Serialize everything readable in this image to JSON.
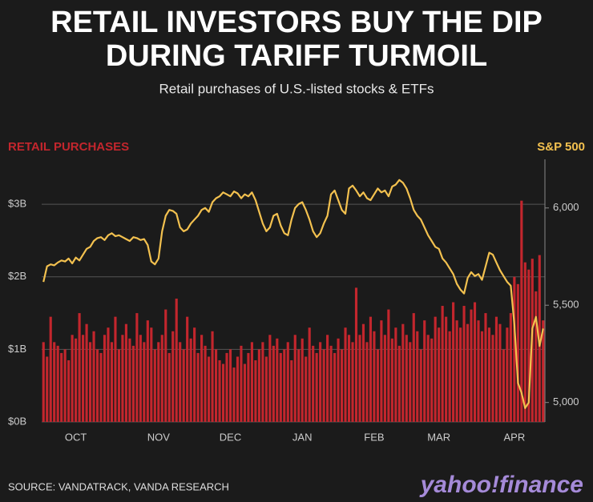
{
  "chart_data": {
    "type": "bar_line",
    "title": [
      "RETAIL INVESTORS BUY THE DIP",
      "DURING TARIFF TURMOIL"
    ],
    "subtitle": "Retail purchases of U.S.-listed stocks & ETFs",
    "y_label": "RETAIL PURCHASES",
    "y2_label": "S&P 500",
    "source": "SOURCE: VANDATRACK, VANDA RESEARCH",
    "logo": "yahoo!finance",
    "categories": [
      null,
      null,
      null,
      null,
      null,
      null,
      null,
      null,
      null,
      "OCT",
      null,
      null,
      null,
      null,
      null,
      null,
      null,
      null,
      null,
      null,
      null,
      null,
      null,
      null,
      null,
      null,
      null,
      null,
      null,
      null,
      null,
      null,
      "NOV",
      null,
      null,
      null,
      null,
      null,
      null,
      null,
      null,
      null,
      null,
      null,
      null,
      null,
      null,
      null,
      null,
      null,
      null,
      null,
      "DEC",
      null,
      null,
      null,
      null,
      null,
      null,
      null,
      null,
      null,
      null,
      null,
      null,
      null,
      null,
      null,
      null,
      null,
      null,
      null,
      "JAN",
      null,
      null,
      null,
      null,
      null,
      null,
      null,
      null,
      null,
      null,
      null,
      null,
      null,
      null,
      null,
      null,
      null,
      null,
      null,
      "FEB",
      null,
      null,
      null,
      null,
      null,
      null,
      null,
      null,
      null,
      null,
      null,
      null,
      null,
      null,
      null,
      null,
      null,
      "MAR",
      null,
      null,
      null,
      null,
      null,
      null,
      null,
      null,
      null,
      null,
      null,
      null,
      null,
      null,
      null,
      null,
      null,
      null,
      null,
      null,
      "APR",
      null,
      null,
      null,
      null,
      null,
      null,
      null,
      null
    ],
    "series": [
      {
        "name": "RETAIL PURCHASES",
        "color": "#c3262d",
        "axis": "y",
        "values": [
          1.1,
          0.9,
          1.45,
          1.1,
          1.05,
          0.95,
          1.0,
          0.85,
          1.2,
          1.15,
          1.5,
          1.2,
          1.35,
          1.1,
          1.25,
          1.0,
          0.95,
          1.2,
          1.3,
          1.1,
          1.45,
          1.0,
          1.2,
          1.35,
          1.15,
          1.05,
          1.5,
          1.2,
          1.1,
          1.4,
          1.3,
          1.0,
          1.1,
          1.2,
          1.55,
          0.95,
          1.25,
          1.7,
          1.1,
          1.0,
          1.45,
          1.15,
          1.3,
          0.95,
          1.2,
          1.05,
          0.9,
          1.25,
          1.0,
          0.85,
          0.8,
          0.95,
          1.0,
          0.75,
          0.9,
          1.05,
          0.8,
          0.95,
          1.1,
          0.85,
          1.0,
          1.1,
          0.9,
          1.2,
          1.05,
          1.15,
          0.95,
          1.0,
          1.1,
          0.85,
          1.2,
          1.0,
          1.15,
          0.9,
          1.3,
          1.05,
          0.95,
          1.1,
          1.0,
          1.2,
          1.05,
          0.95,
          1.15,
          1.0,
          1.3,
          1.2,
          1.1,
          1.85,
          1.2,
          1.35,
          1.1,
          1.45,
          1.25,
          1.0,
          1.4,
          1.2,
          1.55,
          1.15,
          1.3,
          1.05,
          1.35,
          1.2,
          1.1,
          1.5,
          1.25,
          1.0,
          1.4,
          1.2,
          1.15,
          1.45,
          1.3,
          1.6,
          1.45,
          1.25,
          1.65,
          1.4,
          1.3,
          1.6,
          1.35,
          1.55,
          1.65,
          1.4,
          1.25,
          1.5,
          1.3,
          1.2,
          1.45,
          1.35,
          1.0,
          1.3,
          1.5,
          2.0,
          1.9,
          3.05,
          2.2,
          2.1,
          2.25,
          1.8,
          2.3,
          1.4
        ]
      },
      {
        "name": "S&P 500",
        "color": "#f3c14f",
        "axis": "y2",
        "values": [
          5620,
          5700,
          5710,
          5705,
          5720,
          5730,
          5725,
          5740,
          5715,
          5745,
          5730,
          5760,
          5790,
          5800,
          5830,
          5845,
          5850,
          5835,
          5860,
          5870,
          5855,
          5860,
          5850,
          5840,
          5830,
          5850,
          5845,
          5835,
          5840,
          5810,
          5725,
          5710,
          5740,
          5880,
          5960,
          5990,
          5985,
          5970,
          5900,
          5880,
          5890,
          5920,
          5940,
          5960,
          5990,
          6000,
          5980,
          6030,
          6050,
          6060,
          6080,
          6070,
          6060,
          6085,
          6075,
          6050,
          6070,
          6060,
          6080,
          6040,
          5980,
          5920,
          5880,
          5900,
          5960,
          5970,
          5910,
          5870,
          5860,
          5940,
          6000,
          6020,
          6030,
          5990,
          5940,
          5880,
          5850,
          5870,
          5920,
          5960,
          6070,
          6090,
          6040,
          5990,
          5970,
          6100,
          6115,
          6090,
          6060,
          6080,
          6050,
          6040,
          6070,
          6100,
          6080,
          6090,
          6060,
          6110,
          6120,
          6144,
          6130,
          6100,
          6050,
          5990,
          5960,
          5940,
          5900,
          5860,
          5830,
          5800,
          5790,
          5740,
          5720,
          5690,
          5660,
          5610,
          5580,
          5560,
          5640,
          5670,
          5650,
          5660,
          5630,
          5700,
          5770,
          5760,
          5720,
          5680,
          5650,
          5620,
          5600,
          5400,
          5100,
          5050,
          4971,
          5000,
          5380,
          5440,
          5290,
          5380
        ]
      }
    ],
    "ylim": [
      0,
      3.62
    ],
    "yticks": [
      {
        "value": 0,
        "label": "$0B"
      },
      {
        "value": 1,
        "label": "$1B"
      },
      {
        "value": 2,
        "label": "$2B"
      },
      {
        "value": 3,
        "label": "$3B"
      }
    ],
    "y2lim": [
      4900,
      6250
    ],
    "y2ticks": [
      {
        "value": 5000,
        "label": "5,000"
      },
      {
        "value": 5500,
        "label": "5,500"
      },
      {
        "value": 6000,
        "label": "6,000"
      }
    ],
    "grid": true
  }
}
